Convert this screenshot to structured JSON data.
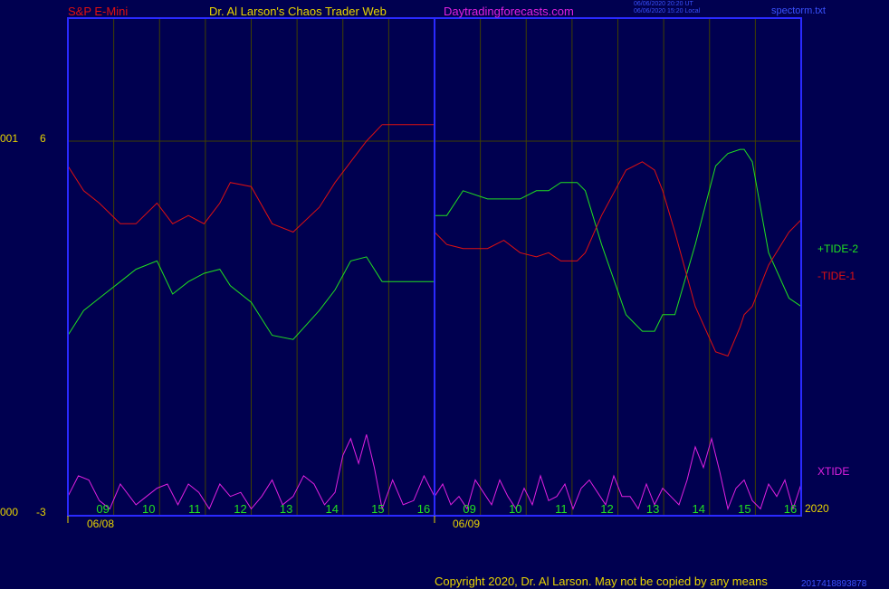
{
  "header": {
    "symbol": "S&P E-Mini",
    "author": "Dr. Al Larson's Chaos Trader Web",
    "site": "Daytradingforecasts.com",
    "time_utc": "06/06/2020 20:20 UT",
    "time_local": "06/06/2020 15:20 Local",
    "file": "spectorm.txt"
  },
  "y_axis": {
    "top_suffix": "001",
    "top_value": "6",
    "bottom_suffix": "000",
    "bottom_value": "-3"
  },
  "x_axis": {
    "day1_hours": [
      "09",
      "10",
      "11",
      "12",
      "13",
      "14",
      "15",
      "16"
    ],
    "day2_hours": [
      "09",
      "10",
      "11",
      "12",
      "13",
      "14",
      "15",
      "16"
    ],
    "dates": [
      "06/08",
      "06/09"
    ],
    "year": "2020"
  },
  "legend": {
    "plus_tide": "+TIDE-2",
    "minus_tide": "-TIDE-1",
    "xtide": "XTIDE"
  },
  "footer": {
    "copyright": "Copyright 2020, Dr. Al Larson. May not be copied by any means",
    "overlap_text": "2017418893878"
  },
  "colors": {
    "background": "#000050",
    "frame": "#2a2aff",
    "grid": "#404000",
    "plus_tide": "#20e020",
    "minus_tide": "#e01010",
    "xtide": "#e020e0",
    "label_yellow": "#e8d400",
    "hour_labels": "#20e020",
    "symbol_red": "#e01010",
    "site_magenta": "#e020e0"
  },
  "chart_data": {
    "type": "line",
    "x_unit": "trading time, two sessions 06/08 and 06/09, 09:00–16:00",
    "y_range": [
      -3,
      6
    ],
    "series": [
      {
        "name": "+TIDE-2",
        "x": [
          0.0,
          0.3,
          0.6,
          1.0,
          1.3,
          1.7,
          2.0,
          2.3,
          2.6,
          2.9,
          3.1,
          3.5,
          3.9,
          4.3,
          4.8,
          5.1,
          5.4,
          5.7,
          6.0,
          7.0,
          7.3,
          7.7,
          8.3,
          8.7,
          9.1,
          9.5,
          9.8,
          10.1,
          10.3,
          10.5,
          10.7,
          11.1,
          11.7,
          12.1,
          12.4,
          12.6,
          12.9,
          13.4,
          13.9,
          14.2,
          14.5,
          14.6,
          14.8,
          15.2,
          15.7,
          16.0
        ],
        "y": [
          1.3,
          1.9,
          2.2,
          2.6,
          2.9,
          3.1,
          2.3,
          2.6,
          2.8,
          2.9,
          2.5,
          2.1,
          1.3,
          1.2,
          1.9,
          2.4,
          3.1,
          3.2,
          2.6,
          4.2,
          4.2,
          4.8,
          4.6,
          4.6,
          4.6,
          4.8,
          4.8,
          5.0,
          5.0,
          5.0,
          4.8,
          3.5,
          1.8,
          1.4,
          1.4,
          1.8,
          1.8,
          3.5,
          5.4,
          5.7,
          5.8,
          5.8,
          5.5,
          3.3,
          2.2,
          2.0
        ]
      },
      {
        "name": "-TIDE-1",
        "x": [
          0.0,
          0.3,
          0.6,
          1.0,
          1.3,
          1.7,
          2.0,
          2.3,
          2.6,
          2.9,
          3.1,
          3.5,
          3.9,
          4.3,
          4.8,
          5.1,
          5.4,
          5.7,
          6.0,
          7.0,
          7.3,
          7.7,
          8.3,
          8.7,
          9.1,
          9.5,
          9.8,
          10.1,
          10.3,
          10.5,
          10.7,
          11.1,
          11.7,
          12.1,
          12.4,
          12.6,
          12.9,
          13.4,
          13.9,
          14.2,
          14.5,
          14.6,
          14.8,
          15.2,
          15.7,
          16.0
        ],
        "y": [
          5.4,
          4.8,
          4.5,
          4.0,
          4.0,
          4.5,
          4.0,
          4.2,
          4.0,
          4.5,
          5.0,
          4.9,
          4.0,
          3.8,
          4.4,
          5.0,
          5.5,
          6.0,
          6.4,
          3.8,
          3.5,
          3.4,
          3.4,
          3.6,
          3.3,
          3.2,
          3.3,
          3.1,
          3.1,
          3.1,
          3.3,
          4.2,
          5.3,
          5.5,
          5.3,
          4.8,
          3.8,
          2.0,
          0.9,
          0.8,
          1.5,
          1.8,
          2.0,
          3.0,
          3.8,
          4.1
        ]
      },
      {
        "name": "XTIDE",
        "x": [
          0.0,
          0.2,
          0.4,
          0.6,
          0.8,
          1.0,
          1.3,
          1.5,
          1.7,
          1.9,
          2.1,
          2.3,
          2.5,
          2.7,
          2.9,
          3.1,
          3.3,
          3.5,
          3.7,
          3.9,
          4.1,
          4.3,
          4.5,
          4.7,
          4.9,
          5.1,
          5.25,
          5.4,
          5.55,
          5.7,
          5.85,
          6.0,
          6.2,
          6.4,
          6.6,
          6.8,
          7.0,
          7.2,
          7.4,
          7.6,
          7.8,
          8.0,
          8.2,
          8.4,
          8.6,
          8.8,
          9.0,
          9.2,
          9.4,
          9.6,
          9.8,
          10.0,
          10.2,
          10.4,
          10.6,
          10.8,
          11.0,
          11.2,
          11.4,
          11.6,
          11.8,
          12.0,
          12.2,
          12.4,
          12.6,
          12.8,
          13.0,
          13.2,
          13.4,
          13.6,
          13.8,
          14.0,
          14.2,
          14.4,
          14.6,
          14.8,
          15.0,
          15.2,
          15.4,
          15.6,
          15.8,
          16.0
        ],
        "y": [
          -2.6,
          -2.1,
          -2.2,
          -2.7,
          -2.9,
          -2.3,
          -2.8,
          -2.6,
          -2.4,
          -2.3,
          -2.8,
          -2.3,
          -2.5,
          -2.9,
          -2.3,
          -2.6,
          -2.5,
          -2.9,
          -2.6,
          -2.2,
          -2.8,
          -2.6,
          -2.1,
          -2.3,
          -2.8,
          -2.5,
          -1.6,
          -1.2,
          -1.8,
          -1.1,
          -1.9,
          -2.9,
          -2.2,
          -2.8,
          -2.7,
          -2.1,
          -2.6,
          -2.3,
          -2.8,
          -2.6,
          -2.9,
          -2.2,
          -2.5,
          -2.8,
          -2.2,
          -2.6,
          -2.9,
          -2.4,
          -2.8,
          -2.1,
          -2.7,
          -2.6,
          -2.3,
          -2.9,
          -2.4,
          -2.2,
          -2.5,
          -2.8,
          -2.1,
          -2.6,
          -2.6,
          -2.9,
          -2.3,
          -2.8,
          -2.4,
          -2.6,
          -2.8,
          -2.2,
          -1.4,
          -1.9,
          -1.2,
          -2.0,
          -2.9,
          -2.4,
          -2.2,
          -2.7,
          -2.9,
          -2.3,
          -2.6,
          -2.2,
          -2.9,
          -2.3
        ]
      }
    ]
  }
}
